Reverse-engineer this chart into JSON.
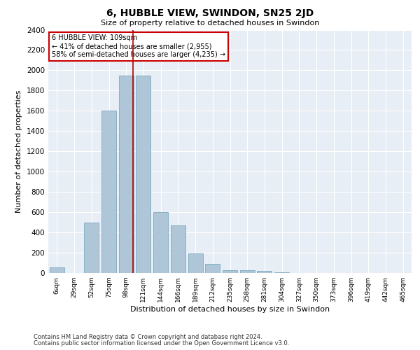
{
  "title": "6, HUBBLE VIEW, SWINDON, SN25 2JD",
  "subtitle": "Size of property relative to detached houses in Swindon",
  "xlabel": "Distribution of detached houses by size in Swindon",
  "ylabel": "Number of detached properties",
  "categories": [
    "6sqm",
    "29sqm",
    "52sqm",
    "75sqm",
    "98sqm",
    "121sqm",
    "144sqm",
    "166sqm",
    "189sqm",
    "212sqm",
    "235sqm",
    "258sqm",
    "281sqm",
    "304sqm",
    "327sqm",
    "350sqm",
    "373sqm",
    "396sqm",
    "419sqm",
    "442sqm",
    "465sqm"
  ],
  "bar_heights": [
    55,
    0,
    500,
    1600,
    1950,
    1950,
    600,
    470,
    195,
    90,
    30,
    25,
    20,
    5,
    0,
    0,
    0,
    0,
    0,
    0,
    0
  ],
  "bar_color": "#aec6d8",
  "bar_edge_color": "#7aaabf",
  "property_line_color": "#aa0000",
  "property_line_bin": 4.4,
  "annotation_text": "6 HUBBLE VIEW: 109sqm\n← 41% of detached houses are smaller (2,955)\n58% of semi-detached houses are larger (4,235) →",
  "annotation_box_color": "#ffffff",
  "annotation_box_edge_color": "#cc0000",
  "ylim": [
    0,
    2400
  ],
  "yticks": [
    0,
    200,
    400,
    600,
    800,
    1000,
    1200,
    1400,
    1600,
    1800,
    2000,
    2200,
    2400
  ],
  "background_color": "#e8eef5",
  "grid_color": "#ffffff",
  "footer_line1": "Contains HM Land Registry data © Crown copyright and database right 2024.",
  "footer_line2": "Contains public sector information licensed under the Open Government Licence v3.0."
}
